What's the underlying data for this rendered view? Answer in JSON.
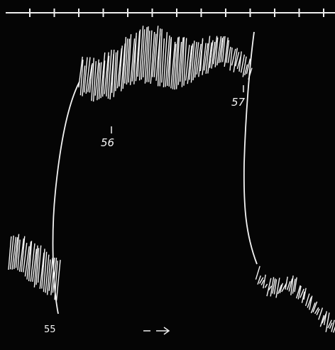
{
  "labels": [
    "55",
    "56",
    "57"
  ]
}
